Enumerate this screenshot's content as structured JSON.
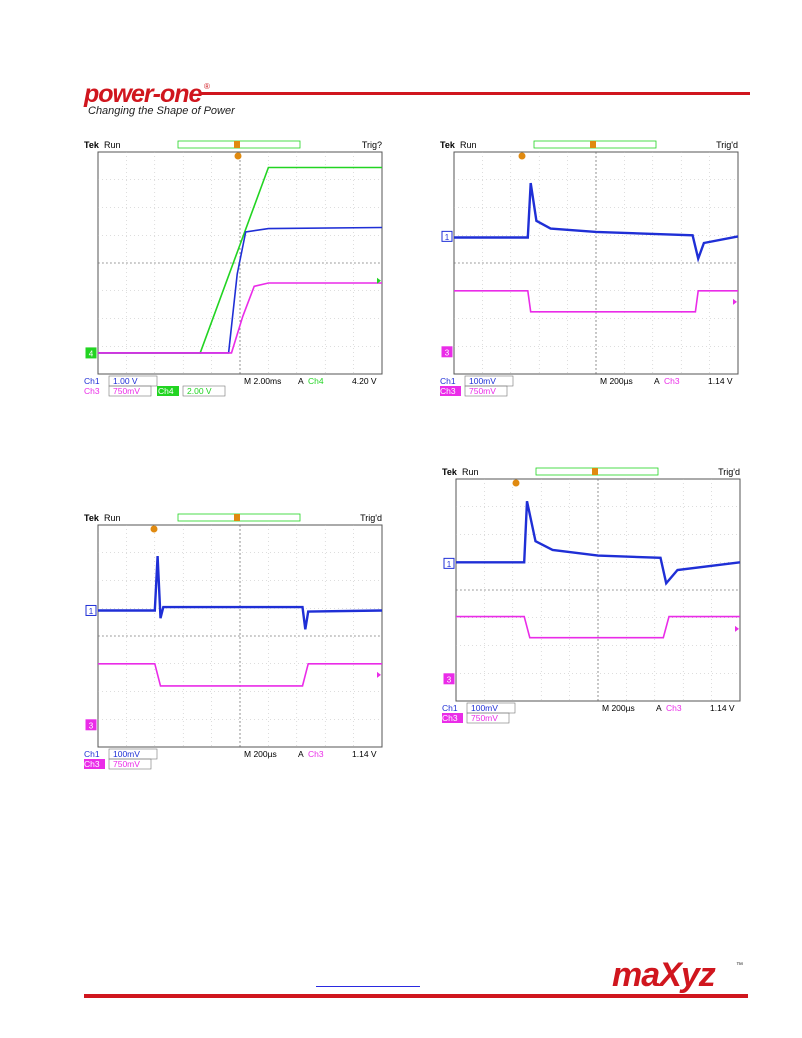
{
  "header": {
    "logo_text": "power-one",
    "logo_reg": "®",
    "tagline": "Changing the Shape of Power"
  },
  "footer": {
    "brand_text": "maXyz",
    "brand_tm": "™"
  },
  "colors": {
    "brand_red": "#d0161e",
    "ch1_blue": "#1f2fd6",
    "ch3_magenta": "#ea2ce8",
    "ch4_green": "#22d422",
    "trigger_orange": "#e08a10",
    "grid": "#555555"
  },
  "scopes": [
    {
      "id": "scope-1",
      "title_brand": "Tek",
      "title_run": "Run",
      "trig_state": "Trig?",
      "markers": [
        {
          "label": "4",
          "color": "#22d422",
          "y": 0.905
        },
        {
          "label": "",
          "color": "#22d422",
          "y": 0.58,
          "right": true
        }
      ],
      "status_row1": [
        {
          "text": "Ch1",
          "color": "#1f2fd6"
        },
        {
          "text": "1.00 V",
          "color": "#1f2fd6",
          "boxed": true
        },
        {
          "text": "M 2.00ms",
          "color": "#000000"
        },
        {
          "text": "A",
          "color": "#000000"
        },
        {
          "text": "Ch4",
          "color": "#22d422"
        },
        {
          "text": "4.20 V",
          "color": "#000000"
        }
      ],
      "status_row2": [
        {
          "text": "Ch3",
          "color": "#ea2ce8"
        },
        {
          "text": "750mV",
          "color": "#ea2ce8",
          "boxed": true
        },
        {
          "text": "Ch4",
          "color": "#ffffff",
          "bg": "#22d422"
        },
        {
          "text": "2.00 V",
          "color": "#22d422",
          "boxed": true
        }
      ],
      "traces": [
        {
          "name": "ch4-trace",
          "color": "#22d422",
          "points": [
            [
              0,
              0.905
            ],
            [
              0.36,
              0.905
            ],
            [
              0.6,
              0.07
            ],
            [
              1,
              0.07
            ]
          ]
        },
        {
          "name": "ch1-trace",
          "color": "#1f2fd6",
          "points": [
            [
              0,
              0.905
            ],
            [
              0.46,
              0.905
            ],
            [
              0.49,
              0.55
            ],
            [
              0.52,
              0.36
            ],
            [
              0.6,
              0.345
            ],
            [
              1,
              0.34
            ]
          ]
        },
        {
          "name": "ch3-trace",
          "color": "#ea2ce8",
          "points": [
            [
              0,
              0.905
            ],
            [
              0.47,
              0.905
            ],
            [
              0.51,
              0.74
            ],
            [
              0.55,
              0.605
            ],
            [
              0.6,
              0.59
            ],
            [
              1,
              0.59
            ]
          ]
        }
      ]
    },
    {
      "id": "scope-2",
      "title_brand": "Tek",
      "title_run": "Run",
      "trig_state": "Trig'd",
      "markers": [
        {
          "label": "1",
          "color": "#1f2fd6",
          "y": 0.38,
          "outline": true
        },
        {
          "label": "3",
          "color": "#ea2ce8",
          "y": 0.9
        },
        {
          "label": "",
          "color": "#ea2ce8",
          "y": 0.675,
          "right": true
        }
      ],
      "status_row1": [
        {
          "text": "Ch1",
          "color": "#1f2fd6"
        },
        {
          "text": "100mV",
          "color": "#1f2fd6",
          "boxed": true
        },
        {
          "text": "M 200µs",
          "color": "#000000"
        },
        {
          "text": "A",
          "color": "#000000"
        },
        {
          "text": "Ch3",
          "color": "#ea2ce8"
        },
        {
          "text": "1.14 V",
          "color": "#000000"
        }
      ],
      "status_row2": [
        {
          "text": "Ch3",
          "color": "#ffffff",
          "bg": "#ea2ce8"
        },
        {
          "text": "750mV",
          "color": "#ea2ce8",
          "boxed": true
        }
      ],
      "traces": [
        {
          "name": "ch1-trace",
          "color": "#1f2fd6",
          "thick": true,
          "points": [
            [
              0,
              0.385
            ],
            [
              0.26,
              0.385
            ],
            [
              0.27,
              0.14
            ],
            [
              0.29,
              0.31
            ],
            [
              0.34,
              0.345
            ],
            [
              0.5,
              0.36
            ],
            [
              0.84,
              0.375
            ],
            [
              0.86,
              0.48
            ],
            [
              0.88,
              0.41
            ],
            [
              1,
              0.38
            ]
          ]
        },
        {
          "name": "ch3-trace",
          "color": "#ea2ce8",
          "points": [
            [
              0,
              0.625
            ],
            [
              0.26,
              0.625
            ],
            [
              0.27,
              0.72
            ],
            [
              0.85,
              0.72
            ],
            [
              0.86,
              0.625
            ],
            [
              1,
              0.625
            ]
          ]
        }
      ]
    },
    {
      "id": "scope-3",
      "title_brand": "Tek",
      "title_run": "Run",
      "trig_state": "Trig'd",
      "markers": [
        {
          "label": "1",
          "color": "#1f2fd6",
          "y": 0.385,
          "outline": true
        },
        {
          "label": "3",
          "color": "#ea2ce8",
          "y": 0.9
        },
        {
          "label": "",
          "color": "#ea2ce8",
          "y": 0.675,
          "right": true
        }
      ],
      "status_row1": [
        {
          "text": "Ch1",
          "color": "#1f2fd6"
        },
        {
          "text": "100mV",
          "color": "#1f2fd6",
          "boxed": true
        },
        {
          "text": "M 200µs",
          "color": "#000000"
        },
        {
          "text": "A",
          "color": "#000000"
        },
        {
          "text": "Ch3",
          "color": "#ea2ce8"
        },
        {
          "text": "1.14 V",
          "color": "#000000"
        }
      ],
      "status_row2": [
        {
          "text": "Ch3",
          "color": "#ffffff",
          "bg": "#ea2ce8"
        },
        {
          "text": "750mV",
          "color": "#ea2ce8",
          "boxed": true
        }
      ],
      "traces": [
        {
          "name": "ch1-trace",
          "color": "#1f2fd6",
          "thick": true,
          "points": [
            [
              0,
              0.385
            ],
            [
              0.2,
              0.385
            ],
            [
              0.21,
              0.14
            ],
            [
              0.22,
              0.42
            ],
            [
              0.23,
              0.37
            ],
            [
              0.72,
              0.37
            ],
            [
              0.73,
              0.47
            ],
            [
              0.74,
              0.39
            ],
            [
              1,
              0.385
            ]
          ]
        },
        {
          "name": "ch3-trace",
          "color": "#ea2ce8",
          "points": [
            [
              0,
              0.625
            ],
            [
              0.2,
              0.625
            ],
            [
              0.22,
              0.725
            ],
            [
              0.72,
              0.725
            ],
            [
              0.74,
              0.625
            ],
            [
              1,
              0.625
            ]
          ]
        }
      ]
    },
    {
      "id": "scope-4",
      "title_brand": "Tek",
      "title_run": "Run",
      "trig_state": "Trig'd",
      "markers": [
        {
          "label": "1",
          "color": "#1f2fd6",
          "y": 0.38,
          "outline": true
        },
        {
          "label": "3",
          "color": "#ea2ce8",
          "y": 0.9
        },
        {
          "label": "",
          "color": "#ea2ce8",
          "y": 0.675,
          "right": true
        }
      ],
      "status_row1": [
        {
          "text": "Ch1",
          "color": "#1f2fd6"
        },
        {
          "text": "100mV",
          "color": "#1f2fd6",
          "boxed": true
        },
        {
          "text": "M 200µs",
          "color": "#000000"
        },
        {
          "text": "A",
          "color": "#000000"
        },
        {
          "text": "Ch3",
          "color": "#ea2ce8"
        },
        {
          "text": "1.14 V",
          "color": "#000000"
        }
      ],
      "status_row2": [
        {
          "text": "Ch3",
          "color": "#ffffff",
          "bg": "#ea2ce8"
        },
        {
          "text": "750mV",
          "color": "#ea2ce8",
          "boxed": true
        }
      ],
      "traces": [
        {
          "name": "ch1-trace",
          "color": "#1f2fd6",
          "thick": true,
          "points": [
            [
              0,
              0.375
            ],
            [
              0.24,
              0.375
            ],
            [
              0.25,
              0.1
            ],
            [
              0.28,
              0.28
            ],
            [
              0.34,
              0.32
            ],
            [
              0.5,
              0.345
            ],
            [
              0.72,
              0.355
            ],
            [
              0.74,
              0.47
            ],
            [
              0.78,
              0.41
            ],
            [
              1,
              0.375
            ]
          ]
        },
        {
          "name": "ch3-trace",
          "color": "#ea2ce8",
          "points": [
            [
              0,
              0.62
            ],
            [
              0.24,
              0.62
            ],
            [
              0.26,
              0.715
            ],
            [
              0.73,
              0.715
            ],
            [
              0.75,
              0.62
            ],
            [
              1,
              0.62
            ]
          ]
        }
      ]
    }
  ]
}
